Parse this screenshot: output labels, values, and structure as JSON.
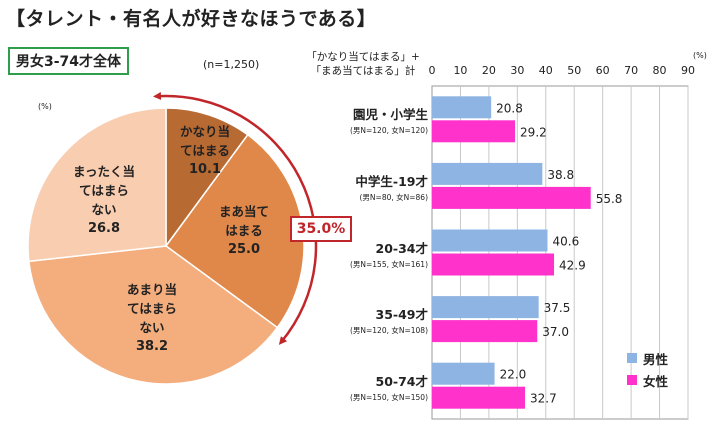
{
  "header": {
    "title": "【タレント・有名人が好きなほうである】",
    "subtitle": "男女3-74才全体",
    "sample": "(n=1,250)",
    "unit": "(%)"
  },
  "bracket": {
    "label": "35.0%"
  },
  "bar_caption": {
    "line1": "「かなり当てはまる」+",
    "line2": "「まあ当てはまる」計"
  },
  "colors": {
    "male": "#8eb4e3",
    "female": "#ff33cc",
    "accent": "#c0262a",
    "frame": "#2e9e4d"
  },
  "chart_data": [
    {
      "type": "pie",
      "slices": [
        {
          "label": "かなり当\nてはまる",
          "value": 10.1,
          "color": "#b86a33"
        },
        {
          "label": "まあ当て\nはまる",
          "value": 25.0,
          "color": "#e0874a"
        },
        {
          "label": "あまり当\nてはまら\nない",
          "value": 38.2,
          "color": "#f4ad7c"
        },
        {
          "label": "まったく当\nてはまら\nない",
          "value": 26.8,
          "color": "#f9cdb0"
        }
      ]
    },
    {
      "type": "bar",
      "orientation": "horizontal",
      "categories": [
        "園児・小学生",
        "中学生-19才",
        "20-34才",
        "35-49才",
        "50-74才"
      ],
      "sample_sizes": [
        "(男N=120, 女N=120)",
        "(男N=80, 女N=86)",
        "(男N=155, 女N=161)",
        "(男N=120, 女N=108)",
        "(男N=150, 女N=150)"
      ],
      "series": [
        {
          "name": "男性",
          "values": [
            20.8,
            38.8,
            40.6,
            37.5,
            22.0
          ]
        },
        {
          "name": "女性",
          "values": [
            29.2,
            55.8,
            42.9,
            37.0,
            32.7
          ]
        }
      ],
      "xlim": [
        0,
        90
      ],
      "xticks": [
        0,
        10,
        20,
        30,
        40,
        50,
        60,
        70,
        80,
        90
      ],
      "xunit": "(%)",
      "grid": true,
      "legend": "bottom-right"
    }
  ]
}
